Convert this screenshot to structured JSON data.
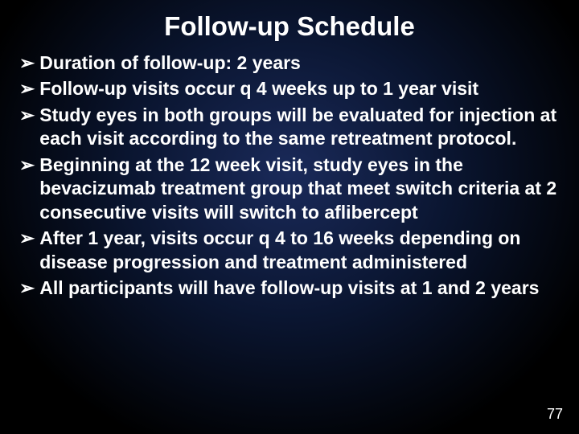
{
  "slide": {
    "title": "Follow-up Schedule",
    "background_gradient": {
      "inner_color": "#1a2a5a",
      "mid_color": "#0a1530",
      "outer_color": "#000000"
    },
    "text_color": "#ffffff",
    "title_fontsize": 33,
    "body_fontsize": 23,
    "font_weight": "bold",
    "bullet_marker": "➢",
    "bullets": [
      "Duration of follow-up:  2 years",
      "Follow-up visits occur q 4 weeks up to 1 year visit",
      "Study eyes in both groups will be evaluated for injection at each visit according to the same retreatment protocol.",
      "Beginning at the 12 week visit, study eyes in the bevacizumab treatment group that meet switch criteria at 2 consecutive visits will switch to aflibercept",
      "After 1 year, visits occur q 4 to 16 weeks depending on disease progression and treatment administered",
      "All participants will have follow-up visits at 1 and 2 years"
    ],
    "page_number": "77"
  }
}
